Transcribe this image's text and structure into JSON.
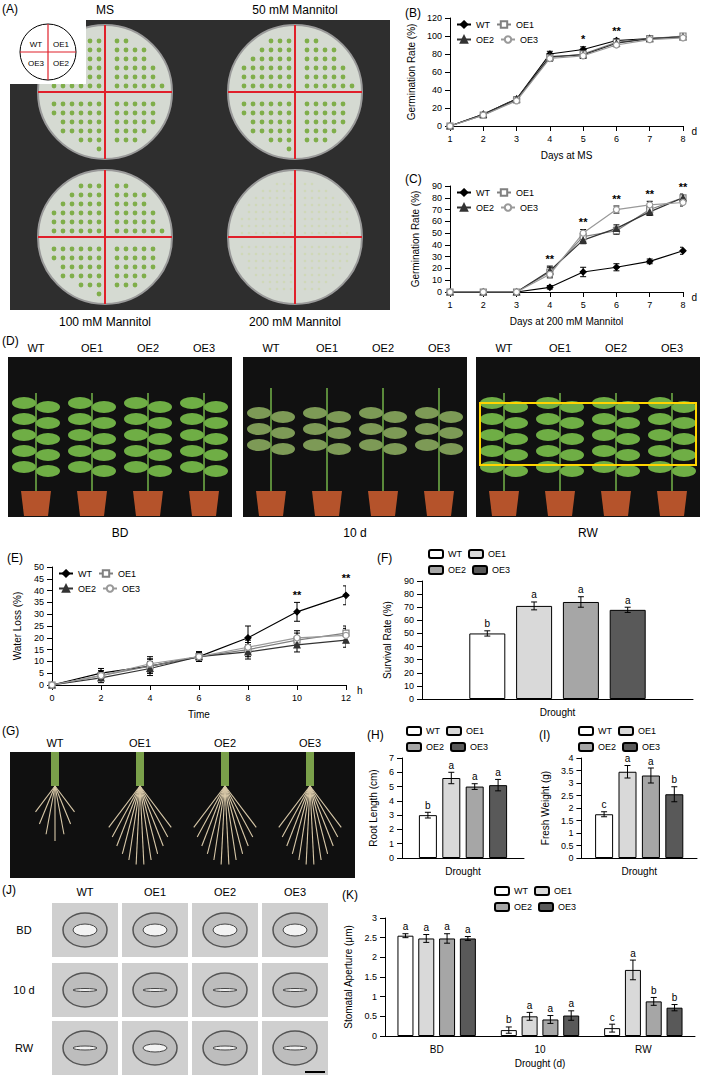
{
  "chart_data": [
    {
      "type": "line",
      "title": "(B)",
      "ylabel": "Germination Rate (%)",
      "xlabel": "Days at MS",
      "x_unit": "d",
      "x": [
        1,
        2,
        3,
        4,
        5,
        6,
        7,
        8
      ],
      "xlim": [
        1,
        8
      ],
      "xticks": [
        1,
        2,
        3,
        4,
        5,
        6,
        7,
        8
      ],
      "ylim": [
        0,
        120
      ],
      "yticks": [
        0,
        20,
        40,
        60,
        80,
        100,
        120
      ],
      "grid": false,
      "legend": "upper left",
      "series": [
        {
          "name": "WT",
          "color": "#000000",
          "marker": "diamond",
          "values": [
            0,
            13,
            30,
            80,
            85,
            95,
            97,
            99
          ],
          "errors": [
            0,
            2,
            2,
            3,
            3,
            2,
            2,
            1
          ]
        },
        {
          "name": "OE1",
          "color": "#808080",
          "marker": "square-open",
          "values": [
            0,
            12,
            29,
            76,
            80,
            93,
            97,
            100
          ],
          "errors": [
            0,
            2,
            2,
            3,
            3,
            2,
            2,
            1
          ]
        },
        {
          "name": "OE2",
          "color": "#333333",
          "marker": "triangle",
          "values": [
            0,
            13,
            30,
            77,
            79,
            92,
            97,
            99
          ],
          "errors": [
            0,
            2,
            2,
            3,
            3,
            2,
            2,
            1
          ]
        },
        {
          "name": "OE3",
          "color": "#999999",
          "marker": "circle-open",
          "values": [
            0,
            12,
            28,
            75,
            78,
            90,
            96,
            98
          ],
          "errors": [
            0,
            2,
            2,
            3,
            3,
            2,
            2,
            1
          ]
        }
      ],
      "annotations": [
        {
          "x": 5,
          "text": "*"
        },
        {
          "x": 6,
          "text": "**"
        }
      ]
    },
    {
      "type": "line",
      "title": "(C)",
      "ylabel": "Germination Rate (%)",
      "xlabel": "Days at 200 mM Mannitol",
      "x_unit": "d",
      "x": [
        1,
        2,
        3,
        4,
        5,
        6,
        7,
        8
      ],
      "xlim": [
        1,
        8
      ],
      "xticks": [
        1,
        2,
        3,
        4,
        5,
        6,
        7,
        8
      ],
      "ylim": [
        0,
        90
      ],
      "yticks": [
        0,
        10,
        20,
        30,
        40,
        50,
        60,
        70,
        80,
        90
      ],
      "grid": false,
      "legend": "upper left",
      "series": [
        {
          "name": "WT",
          "color": "#000000",
          "marker": "diamond",
          "values": [
            0,
            0,
            0,
            4,
            17,
            21,
            26,
            35
          ],
          "errors": [
            0,
            0,
            0,
            1.5,
            4,
            3,
            2,
            3
          ]
        },
        {
          "name": "OE1",
          "color": "#808080",
          "marker": "square-open",
          "values": [
            0,
            0,
            0,
            17,
            47,
            52,
            70,
            80
          ],
          "errors": [
            0,
            0,
            0,
            4,
            4,
            3,
            3,
            3
          ]
        },
        {
          "name": "OE2",
          "color": "#333333",
          "marker": "triangle",
          "values": [
            0,
            0,
            0,
            18,
            44,
            54,
            68,
            80
          ],
          "errors": [
            0,
            0,
            0,
            4,
            3,
            3,
            3,
            3
          ]
        },
        {
          "name": "OE3",
          "color": "#999999",
          "marker": "circle-open",
          "values": [
            0,
            0,
            0,
            15,
            50,
            70,
            74,
            76
          ],
          "errors": [
            0,
            0,
            0,
            3,
            3,
            3,
            3,
            3
          ]
        }
      ],
      "annotations": [
        {
          "x": 4,
          "text": "**"
        },
        {
          "x": 5,
          "text": "**"
        },
        {
          "x": 6,
          "text": "**"
        },
        {
          "x": 7,
          "text": "**"
        },
        {
          "x": 8,
          "text": "**"
        }
      ]
    },
    {
      "type": "line",
      "title": "(E)",
      "ylabel": "Water Loss (%)",
      "xlabel": "Time",
      "x_unit": "h",
      "x": [
        0,
        2,
        4,
        6,
        8,
        10,
        12
      ],
      "xlim": [
        0,
        12
      ],
      "xticks": [
        0,
        2,
        4,
        6,
        8,
        10,
        12
      ],
      "ylim": [
        0,
        50
      ],
      "yticks": [
        0,
        5,
        10,
        15,
        20,
        25,
        30,
        35,
        40,
        45,
        50
      ],
      "grid": false,
      "legend": "upper left",
      "series": [
        {
          "name": "WT",
          "color": "#000000",
          "marker": "diamond",
          "values": [
            0,
            5,
            8,
            12,
            20,
            31,
            38
          ],
          "errors": [
            0,
            2,
            3,
            2,
            5,
            4,
            4
          ]
        },
        {
          "name": "OE1",
          "color": "#808080",
          "marker": "square-open",
          "values": [
            0,
            4,
            8,
            12,
            15,
            19,
            22
          ],
          "errors": [
            0,
            2,
            3,
            2,
            3,
            3,
            3
          ]
        },
        {
          "name": "OE2",
          "color": "#333333",
          "marker": "triangle",
          "values": [
            0,
            3,
            7,
            12,
            14,
            17,
            19
          ],
          "errors": [
            0,
            2,
            3,
            2,
            3,
            3,
            3
          ]
        },
        {
          "name": "OE3",
          "color": "#999999",
          "marker": "circle-open",
          "values": [
            0,
            4,
            9,
            12,
            16,
            20,
            21
          ],
          "errors": [
            0,
            2,
            3,
            2,
            3,
            3,
            3
          ]
        }
      ],
      "annotations": [
        {
          "x": 10,
          "text": "**"
        },
        {
          "x": 12,
          "text": "**"
        }
      ]
    },
    {
      "type": "bar",
      "title": "(F)",
      "ylabel": "Survival Rate (%)",
      "categories": [
        "Drought"
      ],
      "ylim": [
        0,
        90
      ],
      "yticks": [
        0,
        10,
        20,
        30,
        40,
        50,
        60,
        70,
        80,
        90
      ],
      "grid": false,
      "legend": "upper left",
      "series": [
        {
          "name": "WT",
          "color": "#ffffff",
          "values": [
            50
          ],
          "errors": [
            2
          ],
          "letters": [
            "b"
          ]
        },
        {
          "name": "OE1",
          "color": "#d9d9d9",
          "values": [
            71
          ],
          "errors": [
            3
          ],
          "letters": [
            "a"
          ]
        },
        {
          "name": "OE2",
          "color": "#a6a6a6",
          "values": [
            74
          ],
          "errors": [
            4
          ],
          "letters": [
            "a"
          ]
        },
        {
          "name": "OE3",
          "color": "#595959",
          "values": [
            68
          ],
          "errors": [
            2
          ],
          "letters": [
            "a"
          ]
        }
      ]
    },
    {
      "type": "bar",
      "title": "(H)",
      "ylabel": "Root Length (cm)",
      "categories": [
        "Drought"
      ],
      "ylim": [
        0,
        7
      ],
      "yticks": [
        0,
        1,
        2,
        3,
        4,
        5,
        6,
        7
      ],
      "grid": false,
      "legend": "upper left",
      "series": [
        {
          "name": "WT",
          "color": "#ffffff",
          "values": [
            3.0
          ],
          "errors": [
            0.2
          ],
          "letters": [
            "b"
          ]
        },
        {
          "name": "OE1",
          "color": "#d9d9d9",
          "values": [
            5.6
          ],
          "errors": [
            0.4
          ],
          "letters": [
            "a"
          ]
        },
        {
          "name": "OE2",
          "color": "#a6a6a6",
          "values": [
            5.0
          ],
          "errors": [
            0.2
          ],
          "letters": [
            "a"
          ]
        },
        {
          "name": "OE3",
          "color": "#595959",
          "values": [
            5.1
          ],
          "errors": [
            0.4
          ],
          "letters": [
            "a"
          ]
        }
      ]
    },
    {
      "type": "bar",
      "title": "(I)",
      "ylabel": "Fresh Weight (g)",
      "categories": [
        "Drought"
      ],
      "ylim": [
        0,
        4
      ],
      "yticks": [
        0,
        0.5,
        1,
        1.5,
        2,
        2.5,
        3,
        3.5,
        4
      ],
      "grid": false,
      "legend": "upper left",
      "series": [
        {
          "name": "WT",
          "color": "#ffffff",
          "values": [
            1.75
          ],
          "errors": [
            0.1
          ],
          "letters": [
            "c"
          ]
        },
        {
          "name": "OE1",
          "color": "#d9d9d9",
          "values": [
            3.45
          ],
          "errors": [
            0.25
          ],
          "letters": [
            "a"
          ]
        },
        {
          "name": "OE2",
          "color": "#a6a6a6",
          "values": [
            3.3
          ],
          "errors": [
            0.3
          ],
          "letters": [
            "a"
          ]
        },
        {
          "name": "OE3",
          "color": "#595959",
          "values": [
            2.55
          ],
          "errors": [
            0.3
          ],
          "letters": [
            "b"
          ]
        }
      ]
    },
    {
      "type": "bar",
      "title": "(K)",
      "ylabel": "Stomatal Aperture (μm)",
      "xlabel": "Drought (d)",
      "categories": [
        "BD",
        "10",
        "RW"
      ],
      "ylim": [
        0,
        3
      ],
      "yticks": [
        0,
        0.5,
        1,
        1.5,
        2,
        2.5,
        3
      ],
      "grid": false,
      "legend": "upper center",
      "series": [
        {
          "name": "WT",
          "color": "#ffffff",
          "values": [
            2.55,
            0.15,
            0.2
          ],
          "errors": [
            0.05,
            0.08,
            0.1
          ],
          "letters": [
            "a",
            "b",
            "c"
          ]
        },
        {
          "name": "OE1",
          "color": "#d9d9d9",
          "values": [
            2.48,
            0.5,
            1.68
          ],
          "errors": [
            0.1,
            0.1,
            0.25
          ],
          "letters": [
            "a",
            "a",
            "a"
          ]
        },
        {
          "name": "OE2",
          "color": "#a6a6a6",
          "values": [
            2.48,
            0.42,
            0.88
          ],
          "errors": [
            0.12,
            0.1,
            0.1
          ],
          "letters": [
            "a",
            "a",
            "b"
          ]
        },
        {
          "name": "OE3",
          "color": "#595959",
          "values": [
            2.48,
            0.52,
            0.72
          ],
          "errors": [
            0.05,
            0.12,
            0.08
          ],
          "letters": [
            "a",
            "a",
            "b"
          ]
        }
      ]
    }
  ],
  "image_panels": {
    "dishes": {
      "label": "(A)",
      "conditions": [
        "MS",
        "50 mM Mannitol",
        "100 mM Mannitol",
        "200 mM Mannitol"
      ],
      "inset": [
        "WT",
        "OE1",
        "OE3",
        "OE2"
      ]
    },
    "plants": {
      "label": "(D)",
      "genotypes": [
        "WT",
        "OE1",
        "OE2",
        "OE3"
      ],
      "stages": [
        "BD",
        "10 d",
        "RW"
      ]
    },
    "roots": {
      "label": "(G)",
      "genotypes": [
        "WT",
        "OE1",
        "OE2",
        "OE3"
      ]
    },
    "stomata": {
      "label": "(J)",
      "genotypes": [
        "WT",
        "OE1",
        "OE2",
        "OE3"
      ],
      "stages": [
        "BD",
        "10 d",
        "RW"
      ]
    }
  }
}
